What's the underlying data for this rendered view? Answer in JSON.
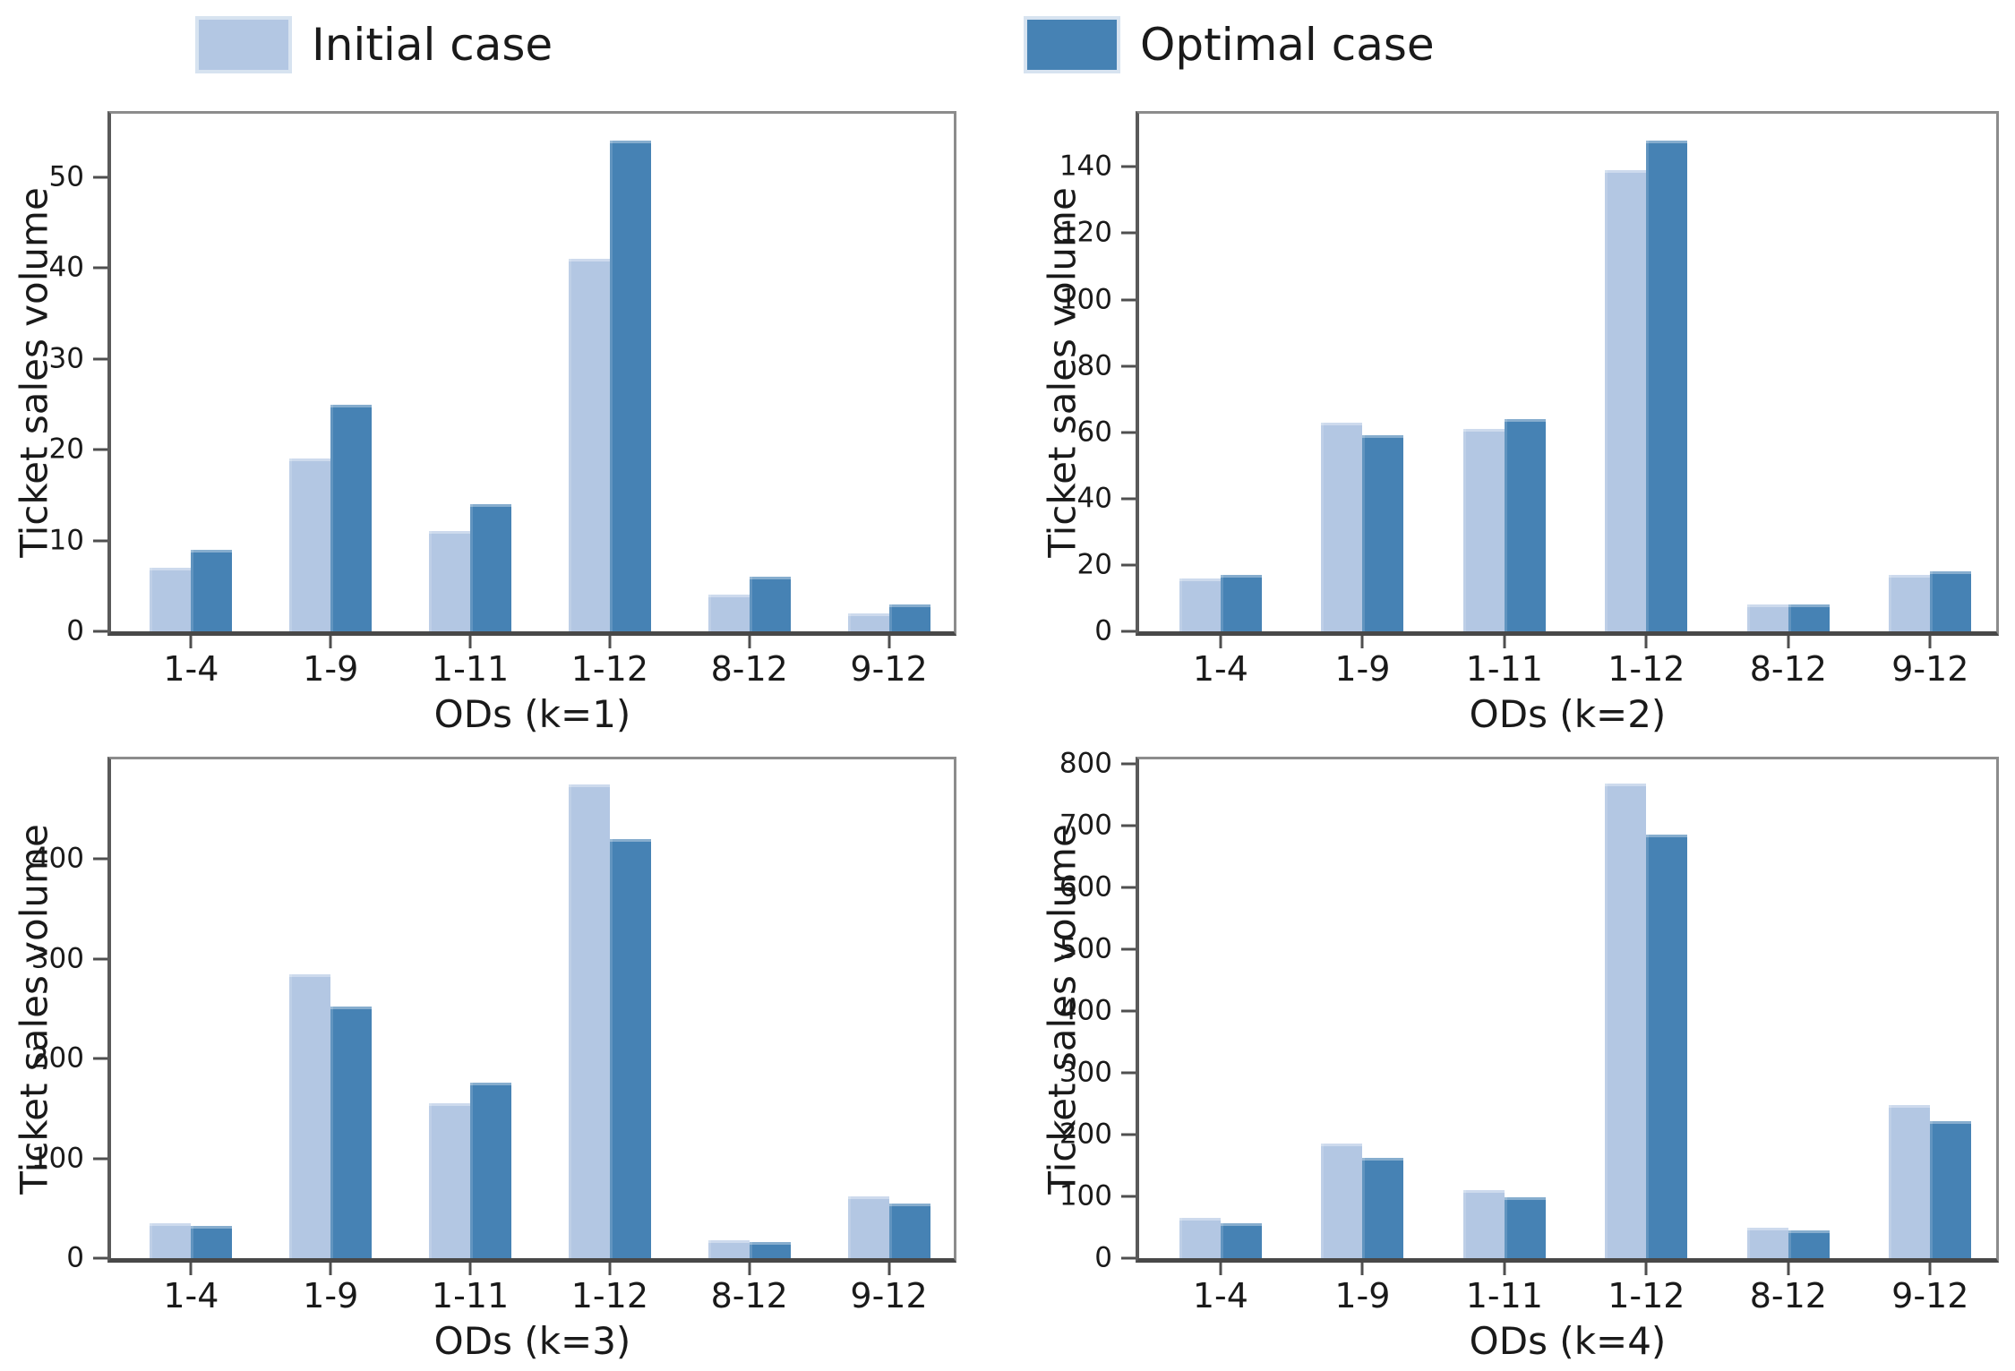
{
  "figure": {
    "legend": {
      "items": [
        {
          "label": "Initial case",
          "color": "#b3c7e3"
        },
        {
          "label": "Optimal case",
          "color": "#4682b4"
        }
      ]
    }
  },
  "chart_data": [
    {
      "type": "bar",
      "id": "k1",
      "title": "",
      "xlabel": "ODs (k=1)",
      "ylabel": "Ticket sales volume",
      "categories": [
        "1-4",
        "1-9",
        "1-11",
        "1-12",
        "8-12",
        "9-12"
      ],
      "series": [
        {
          "name": "Initial case",
          "color": "#b3c7e3",
          "values": [
            7,
            19,
            11,
            41,
            4,
            2
          ]
        },
        {
          "name": "Optimal case",
          "color": "#4682b4",
          "values": [
            9,
            25,
            14,
            54,
            6,
            3
          ]
        }
      ],
      "yticks": [
        0,
        10,
        20,
        30,
        40,
        50
      ],
      "ylim": [
        0,
        57
      ],
      "grid": false,
      "legend_position": "figure-top"
    },
    {
      "type": "bar",
      "id": "k2",
      "title": "",
      "xlabel": "ODs (k=2)",
      "ylabel": "Ticket sales volume",
      "categories": [
        "1-4",
        "1-9",
        "1-11",
        "1-12",
        "8-12",
        "9-12"
      ],
      "series": [
        {
          "name": "Initial case",
          "color": "#b3c7e3",
          "values": [
            16,
            63,
            61,
            139,
            8,
            17
          ]
        },
        {
          "name": "Optimal case",
          "color": "#4682b4",
          "values": [
            17,
            59,
            64,
            148,
            8,
            18
          ]
        }
      ],
      "yticks": [
        0,
        20,
        40,
        60,
        80,
        100,
        120,
        140
      ],
      "ylim": [
        0,
        156
      ],
      "grid": false,
      "legend_position": "figure-top"
    },
    {
      "type": "bar",
      "id": "k3",
      "title": "",
      "xlabel": "ODs (k=3)",
      "ylabel": "Ticket sales volume",
      "categories": [
        "1-4",
        "1-9",
        "1-11",
        "1-12",
        "8-12",
        "9-12"
      ],
      "series": [
        {
          "name": "Initial case",
          "color": "#b3c7e3",
          "values": [
            35,
            285,
            155,
            475,
            18,
            62
          ]
        },
        {
          "name": "Optimal case",
          "color": "#4682b4",
          "values": [
            32,
            252,
            176,
            420,
            16,
            55
          ]
        }
      ],
      "yticks": [
        0,
        100,
        200,
        300,
        400
      ],
      "ylim": [
        0,
        500
      ],
      "grid": false,
      "legend_position": "figure-top"
    },
    {
      "type": "bar",
      "id": "k4",
      "title": "",
      "xlabel": "ODs (k=4)",
      "ylabel": "Ticket sales volume",
      "categories": [
        "1-4",
        "1-9",
        "1-11",
        "1-12",
        "8-12",
        "9-12"
      ],
      "series": [
        {
          "name": "Initial case",
          "color": "#b3c7e3",
          "values": [
            65,
            185,
            110,
            768,
            50,
            248
          ]
        },
        {
          "name": "Optimal case",
          "color": "#4682b4",
          "values": [
            57,
            163,
            98,
            685,
            45,
            222
          ]
        }
      ],
      "yticks": [
        0,
        100,
        200,
        300,
        400,
        500,
        600,
        700,
        800
      ],
      "ylim": [
        0,
        807
      ],
      "grid": false,
      "legend_position": "figure-top"
    }
  ]
}
